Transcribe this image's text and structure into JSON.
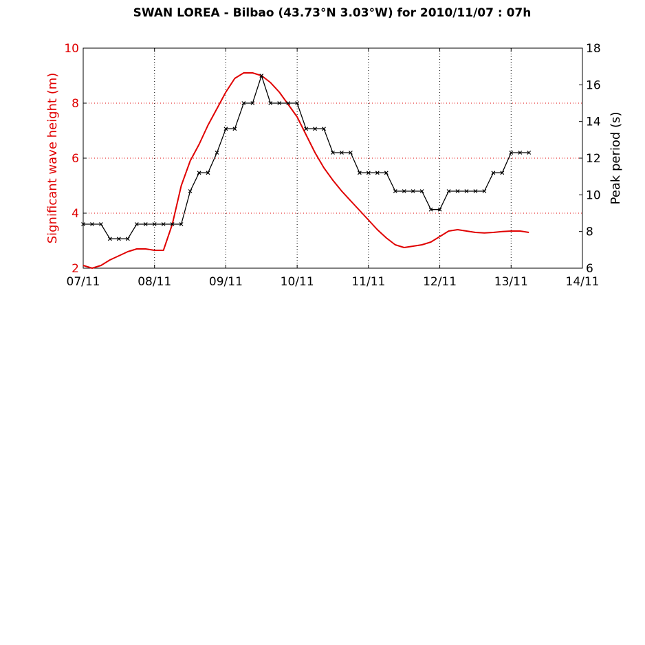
{
  "chart_data": {
    "type": "line",
    "title": "SWAN LOREA - Bilbao (43.73°N 3.03°W)   for   2010/11/07 : 07h",
    "x_tick_labels": [
      "07/11",
      "08/11",
      "09/11",
      "10/11",
      "11/11",
      "12/11",
      "13/11",
      "14/11"
    ],
    "xlim": [
      0,
      7
    ],
    "grid": true,
    "left_axis": {
      "label": "Significant wave height (m)",
      "ylim": [
        2,
        10
      ],
      "ticks": [
        2,
        4,
        6,
        8,
        10
      ],
      "color": "#e00000"
    },
    "right_axis": {
      "label": "Peak period (s)",
      "ylim": [
        6,
        18
      ],
      "ticks": [
        6,
        8,
        10,
        12,
        14,
        16,
        18
      ],
      "color": "#000000"
    },
    "series": [
      {
        "axis": "left",
        "color": "#e00000",
        "marker": "none",
        "x": [
          0,
          0.125,
          0.25,
          0.375,
          0.5,
          0.625,
          0.75,
          0.875,
          1.0,
          1.125,
          1.25,
          1.375,
          1.5,
          1.625,
          1.75,
          1.875,
          2.0,
          2.125,
          2.25,
          2.375,
          2.5,
          2.625,
          2.75,
          2.875,
          3.0,
          3.125,
          3.25,
          3.375,
          3.5,
          3.625,
          3.75,
          3.875,
          4.0,
          4.125,
          4.25,
          4.375,
          4.5,
          4.625,
          4.75,
          4.875,
          5.0,
          5.125,
          5.25,
          5.375,
          5.5,
          5.625,
          5.75,
          5.875,
          6.0,
          6.125,
          6.25
        ],
        "values": [
          2.1,
          2.0,
          2.1,
          2.3,
          2.45,
          2.6,
          2.7,
          2.7,
          2.65,
          2.65,
          3.6,
          5.0,
          5.9,
          6.5,
          7.2,
          7.8,
          8.4,
          8.9,
          9.1,
          9.1,
          9.0,
          8.75,
          8.4,
          7.95,
          7.5,
          6.85,
          6.2,
          5.65,
          5.2,
          4.8,
          4.45,
          4.1,
          3.75,
          3.4,
          3.1,
          2.85,
          2.75,
          2.8,
          2.85,
          2.95,
          3.15,
          3.35,
          3.4,
          3.35,
          3.3,
          3.28,
          3.3,
          3.33,
          3.35,
          3.35,
          3.3
        ]
      },
      {
        "axis": "right",
        "color": "#000000",
        "marker": "x",
        "x": [
          0,
          0.125,
          0.25,
          0.375,
          0.5,
          0.625,
          0.75,
          0.875,
          1.0,
          1.125,
          1.25,
          1.375,
          1.5,
          1.625,
          1.75,
          1.875,
          2.0,
          2.125,
          2.25,
          2.375,
          2.5,
          2.625,
          2.75,
          2.875,
          3.0,
          3.125,
          3.25,
          3.375,
          3.5,
          3.625,
          3.75,
          3.875,
          4.0,
          4.125,
          4.25,
          4.375,
          4.5,
          4.625,
          4.75,
          4.875,
          5.0,
          5.125,
          5.25,
          5.375,
          5.5,
          5.625,
          5.75,
          5.875,
          6.0,
          6.125,
          6.25
        ],
        "values": [
          8.4,
          8.4,
          8.4,
          7.6,
          7.6,
          7.6,
          8.4,
          8.4,
          8.4,
          8.4,
          8.4,
          8.4,
          10.2,
          11.2,
          11.2,
          12.3,
          13.6,
          13.6,
          15.0,
          15.0,
          16.5,
          15.0,
          15.0,
          15.0,
          15.0,
          13.6,
          13.6,
          13.6,
          12.3,
          12.3,
          12.3,
          11.2,
          11.2,
          11.2,
          11.2,
          10.2,
          10.2,
          10.2,
          10.2,
          9.2,
          9.2,
          10.2,
          10.2,
          10.2,
          10.2,
          10.2,
          11.2,
          11.2,
          12.3,
          12.3,
          12.3
        ]
      }
    ]
  }
}
